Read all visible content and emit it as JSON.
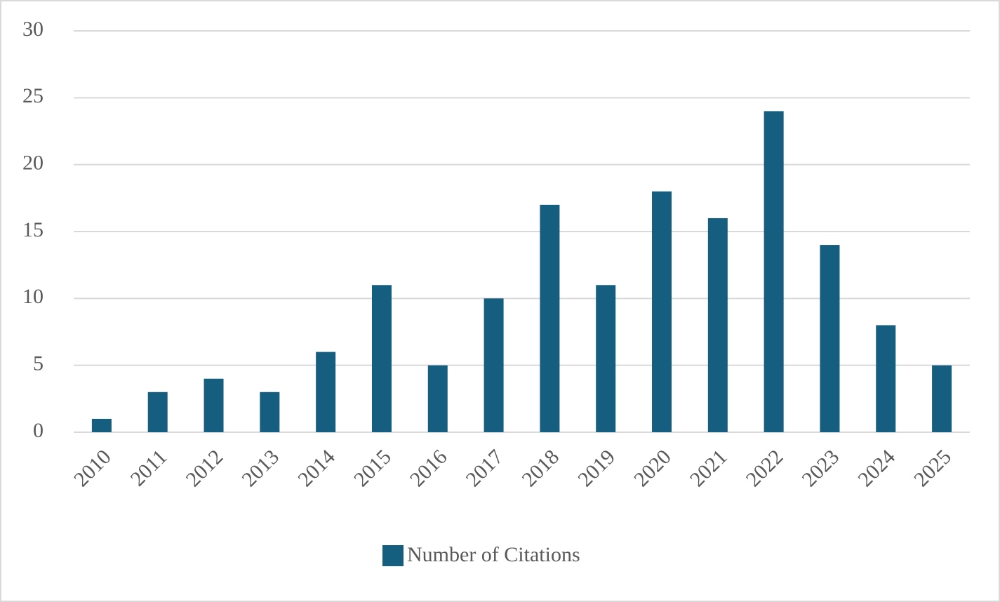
{
  "chart_data": {
    "type": "bar",
    "categories": [
      "2010",
      "2011",
      "2012",
      "2013",
      "2014",
      "2015",
      "2016",
      "2017",
      "2018",
      "2019",
      "2020",
      "2021",
      "2022",
      "2023",
      "2024",
      "2025"
    ],
    "series": [
      {
        "name": "Number of Citations",
        "color": "#165e80",
        "values": [
          1,
          3,
          4,
          3,
          6,
          11,
          5,
          10,
          17,
          11,
          18,
          16,
          24,
          14,
          8,
          5
        ]
      }
    ],
    "ylim": [
      0,
      30
    ],
    "yticks": [
      0,
      5,
      10,
      15,
      20,
      25,
      30
    ],
    "grid": true,
    "legend": "bottom"
  }
}
